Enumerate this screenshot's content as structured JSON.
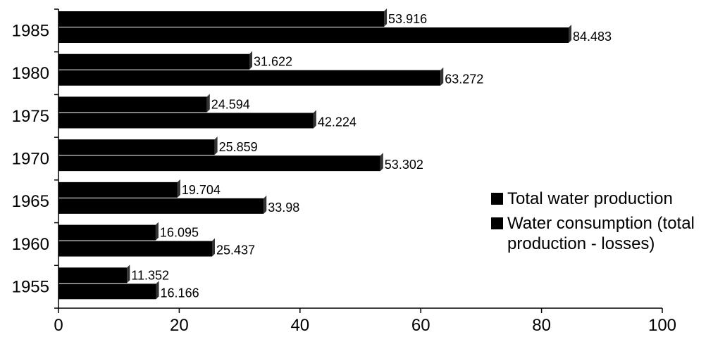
{
  "chart_data": {
    "type": "bar",
    "orientation": "horizontal",
    "categories": [
      "1955",
      "1960",
      "1965",
      "1970",
      "1975",
      "1980",
      "1985"
    ],
    "series": [
      {
        "name": "Total water production",
        "values": [
          11.352,
          16.095,
          19.704,
          25.859,
          24.594,
          31.622,
          53.916
        ]
      },
      {
        "name": "Water consumption (total production - losses)",
        "values": [
          16.166,
          25.437,
          33.98,
          53.302,
          42.224,
          63.272,
          84.483
        ]
      }
    ],
    "xlim": [
      0,
      100
    ],
    "xticks": [
      0,
      20,
      40,
      60,
      80,
      100
    ],
    "title": "",
    "xlabel": "",
    "ylabel": "",
    "grid": false,
    "legend_position": "right",
    "colors": {
      "bar": "#000000",
      "bar_side": "#333333",
      "text": "#000000"
    }
  },
  "legend": {
    "items": [
      {
        "label": "Total water production"
      },
      {
        "label": "Water consumption (total production - losses)"
      }
    ]
  }
}
